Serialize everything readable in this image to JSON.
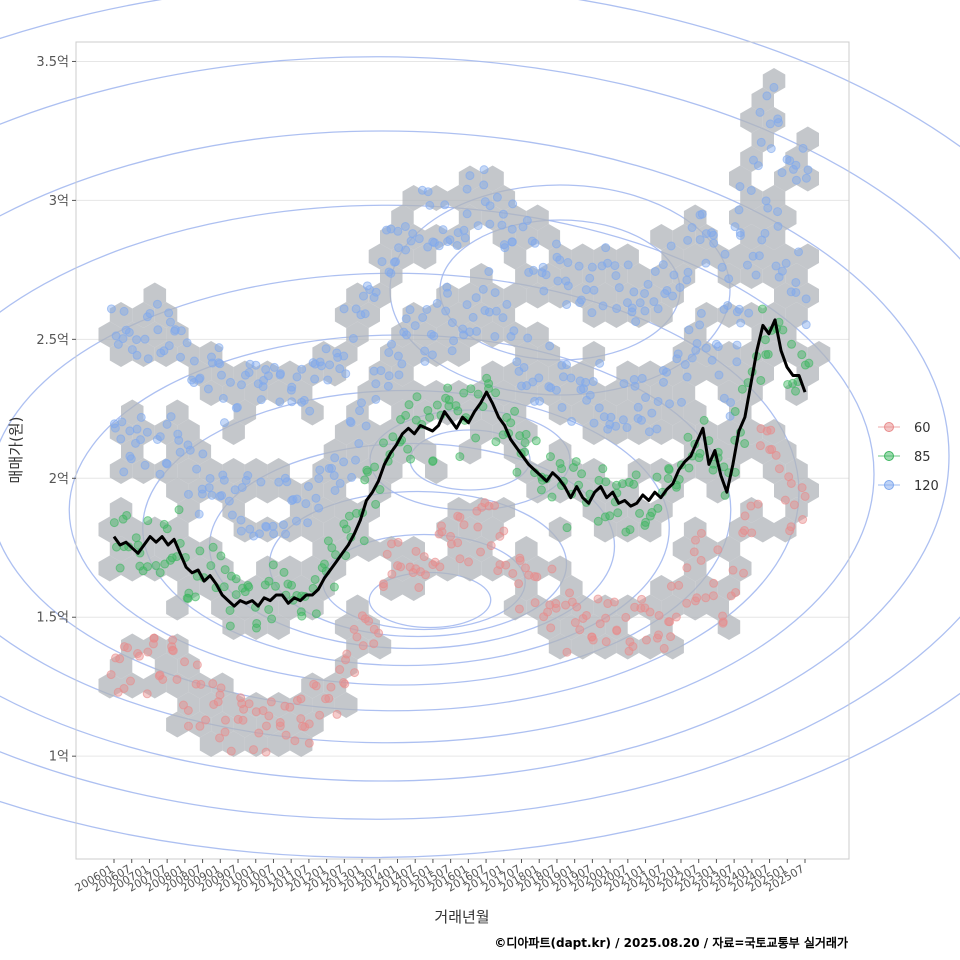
{
  "chart_data": {
    "type": "scatter",
    "xlabel": "거래년월",
    "ylabel": "매매가(원)",
    "caption": "©디아파트(dapt.kr) / 2025.08.20 / 자료=국토교통부 실거래가",
    "ylim": [
      0.63,
      3.57
    ],
    "y_unit": "억",
    "y_ticks": [
      {
        "value": 1.0,
        "label": "1억"
      },
      {
        "value": 1.5,
        "label": "1.5억"
      },
      {
        "value": 2.0,
        "label": "2억"
      },
      {
        "value": 2.5,
        "label": "2.5억"
      },
      {
        "value": 3.0,
        "label": "3억"
      },
      {
        "value": 3.5,
        "label": "3.5억"
      }
    ],
    "x_ticks": [
      "200601",
      "200607",
      "200701",
      "200707",
      "200801",
      "200807",
      "200901",
      "200907",
      "201001",
      "201007",
      "201101",
      "201107",
      "201201",
      "201207",
      "201301",
      "201307",
      "201401",
      "201407",
      "201501",
      "201507",
      "201601",
      "201607",
      "201701",
      "201707",
      "201801",
      "201807",
      "201901",
      "201907",
      "202001",
      "202007",
      "202101",
      "202107",
      "202201",
      "202207",
      "202301",
      "202307",
      "202401",
      "202407",
      "202501",
      "202507"
    ],
    "grid": true,
    "legend_position": "right",
    "legend": [
      {
        "label": "60",
        "color": "#e88b8b"
      },
      {
        "label": "85",
        "color": "#3cb55f"
      },
      {
        "label": "120",
        "color": "#7fa8ee"
      }
    ],
    "line_color": "#000000",
    "hex_color": "#b0b4ba",
    "contour_color": "#9fb5ef",
    "trend_line": [
      [
        0,
        1.79
      ],
      [
        1,
        1.76
      ],
      [
        2,
        1.77
      ],
      [
        3,
        1.75
      ],
      [
        4,
        1.73
      ],
      [
        5,
        1.76
      ],
      [
        6,
        1.79
      ],
      [
        7,
        1.77
      ],
      [
        8,
        1.79
      ],
      [
        9,
        1.76
      ],
      [
        10,
        1.78
      ],
      [
        11,
        1.73
      ],
      [
        12,
        1.68
      ],
      [
        13,
        1.66
      ],
      [
        14,
        1.67
      ],
      [
        15,
        1.63
      ],
      [
        16,
        1.65
      ],
      [
        17,
        1.62
      ],
      [
        18,
        1.58
      ],
      [
        19,
        1.56
      ],
      [
        20,
        1.54
      ],
      [
        21,
        1.56
      ],
      [
        22,
        1.55
      ],
      [
        23,
        1.56
      ],
      [
        24,
        1.54
      ],
      [
        25,
        1.57
      ],
      [
        26,
        1.56
      ],
      [
        27,
        1.58
      ],
      [
        28,
        1.58
      ],
      [
        29,
        1.55
      ],
      [
        30,
        1.57
      ],
      [
        31,
        1.56
      ],
      [
        32,
        1.58
      ],
      [
        33,
        1.58
      ],
      [
        34,
        1.6
      ],
      [
        35,
        1.64
      ],
      [
        36,
        1.67
      ],
      [
        37,
        1.7
      ],
      [
        38,
        1.73
      ],
      [
        39,
        1.76
      ],
      [
        40,
        1.8
      ],
      [
        41,
        1.85
      ],
      [
        42,
        1.92
      ],
      [
        43,
        1.95
      ],
      [
        44,
        1.99
      ],
      [
        45,
        2.05
      ],
      [
        46,
        2.09
      ],
      [
        47,
        2.12
      ],
      [
        48,
        2.16
      ],
      [
        49,
        2.18
      ],
      [
        50,
        2.16
      ],
      [
        51,
        2.19
      ],
      [
        52,
        2.18
      ],
      [
        53,
        2.17
      ],
      [
        54,
        2.19
      ],
      [
        55,
        2.24
      ],
      [
        56,
        2.21
      ],
      [
        57,
        2.18
      ],
      [
        58,
        2.22
      ],
      [
        59,
        2.2
      ],
      [
        60,
        2.24
      ],
      [
        61,
        2.27
      ],
      [
        62,
        2.31
      ],
      [
        63,
        2.27
      ],
      [
        64,
        2.22
      ],
      [
        65,
        2.19
      ],
      [
        66,
        2.14
      ],
      [
        67,
        2.11
      ],
      [
        68,
        2.08
      ],
      [
        69,
        2.05
      ],
      [
        70,
        2.03
      ],
      [
        71,
        2.01
      ],
      [
        72,
        1.99
      ],
      [
        73,
        2.02
      ],
      [
        74,
        2.0
      ],
      [
        75,
        1.97
      ],
      [
        76,
        1.93
      ],
      [
        77,
        1.97
      ],
      [
        78,
        1.93
      ],
      [
        79,
        1.91
      ],
      [
        80,
        1.95
      ],
      [
        81,
        1.97
      ],
      [
        82,
        1.93
      ],
      [
        83,
        1.95
      ],
      [
        84,
        1.91
      ],
      [
        85,
        1.92
      ],
      [
        86,
        1.9
      ],
      [
        87,
        1.91
      ],
      [
        88,
        1.94
      ],
      [
        89,
        1.92
      ],
      [
        90,
        1.95
      ],
      [
        91,
        1.93
      ],
      [
        92,
        1.96
      ],
      [
        93,
        1.98
      ],
      [
        94,
        2.03
      ],
      [
        95,
        2.06
      ],
      [
        96,
        2.08
      ],
      [
        97,
        2.13
      ],
      [
        98,
        2.18
      ],
      [
        99,
        2.05
      ],
      [
        100,
        2.1
      ],
      [
        101,
        2.01
      ],
      [
        102,
        1.95
      ],
      [
        103,
        2.05
      ],
      [
        104,
        2.17
      ],
      [
        105,
        2.22
      ],
      [
        106,
        2.34
      ],
      [
        107,
        2.46
      ],
      [
        108,
        2.55
      ],
      [
        109,
        2.52
      ],
      [
        110,
        2.57
      ],
      [
        111,
        2.46
      ],
      [
        112,
        2.4
      ],
      [
        113,
        2.37
      ],
      [
        114,
        2.37
      ],
      [
        115,
        2.31
      ]
    ]
  }
}
